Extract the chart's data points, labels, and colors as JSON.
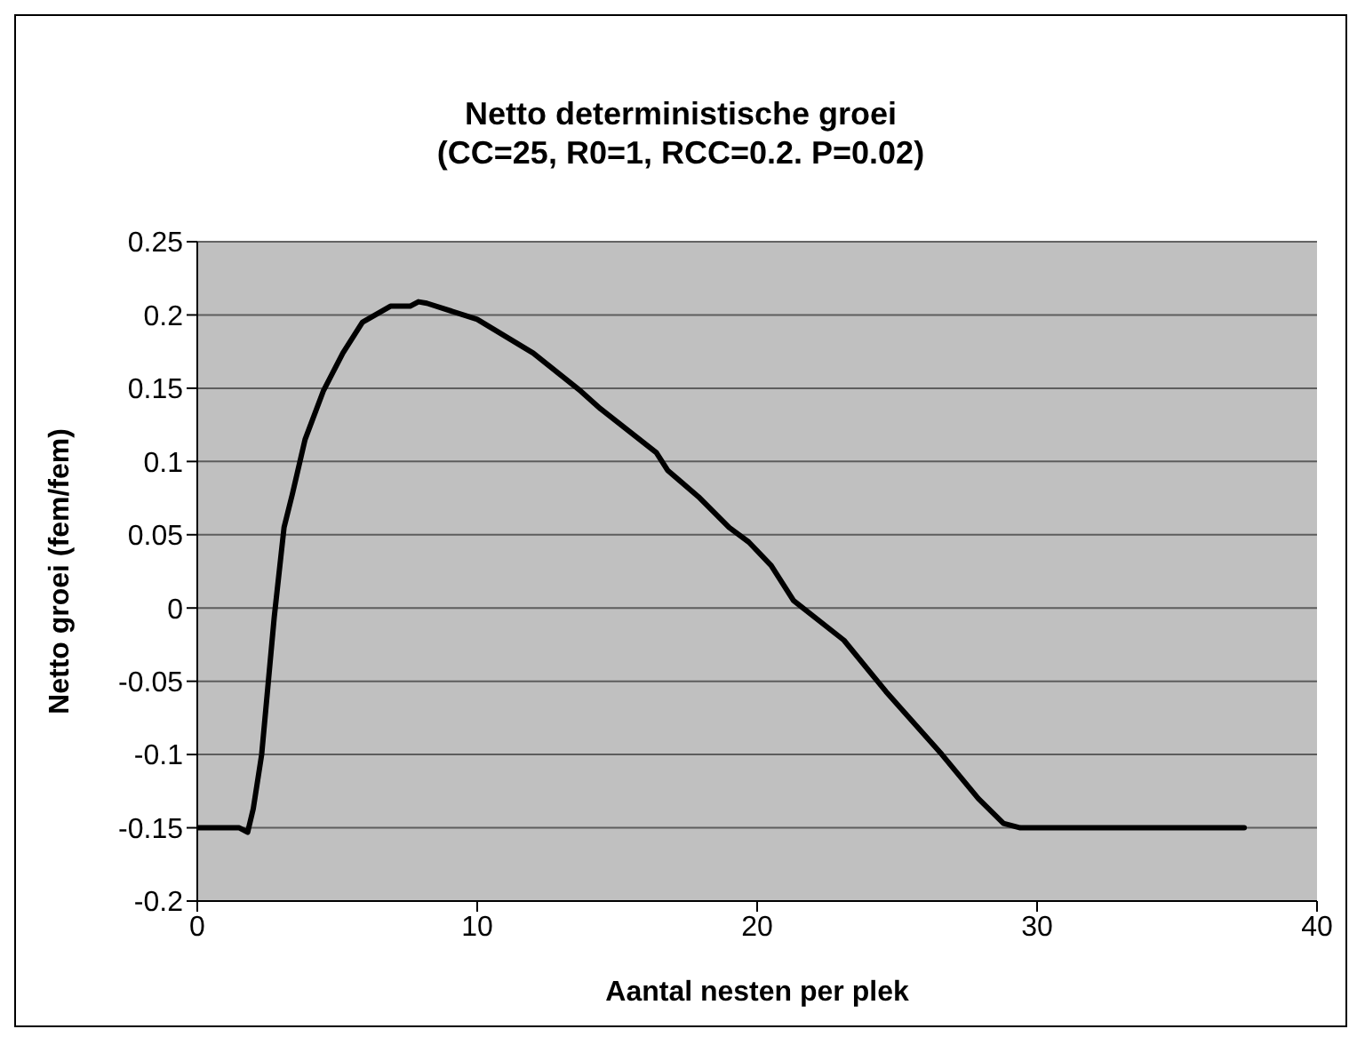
{
  "chart_data": {
    "type": "line",
    "title": "Netto deterministische groei",
    "subtitle": "(CC=25, R0=1, RCC=0.2. P=0.02)",
    "xlabel": "Aantal nesten per plek",
    "ylabel": "Netto groei (fem/fem)",
    "xlim": [
      0,
      40
    ],
    "xticks": [
      0,
      10,
      20,
      30,
      40
    ],
    "ylim": [
      -0.2,
      0.25
    ],
    "yticks": [
      -0.2,
      -0.15,
      -0.1,
      -0.05,
      0,
      0.05,
      0.1,
      0.15,
      0.2,
      0.25
    ],
    "grid": "y",
    "legend": false,
    "marker": "none",
    "line_style": "solid",
    "series": [
      {
        "color": "#000000",
        "x": [
          0,
          1.5,
          1.8,
          2.0,
          2.3,
          2.75,
          3.1,
          3.4,
          3.85,
          4.5,
          5.2,
          5.9,
          6.9,
          7.6,
          7.9,
          8.2,
          10,
          12,
          13.7,
          14.4,
          16.4,
          16.8,
          17.9,
          19.0,
          19.7,
          20.5,
          21.3,
          23.1,
          24.6,
          26.6,
          27.9,
          28.8,
          29.4,
          37.4
        ],
        "values": [
          -0.15,
          -0.15,
          -0.153,
          -0.137,
          -0.1,
          -0.006,
          0.055,
          0.078,
          0.115,
          0.148,
          0.174,
          0.195,
          0.206,
          0.206,
          0.209,
          0.208,
          0.197,
          0.174,
          0.148,
          0.136,
          0.106,
          0.094,
          0.076,
          0.055,
          0.045,
          0.029,
          0.005,
          -0.022,
          -0.057,
          -0.1,
          -0.13,
          -0.147,
          -0.15,
          -0.15
        ]
      }
    ]
  }
}
